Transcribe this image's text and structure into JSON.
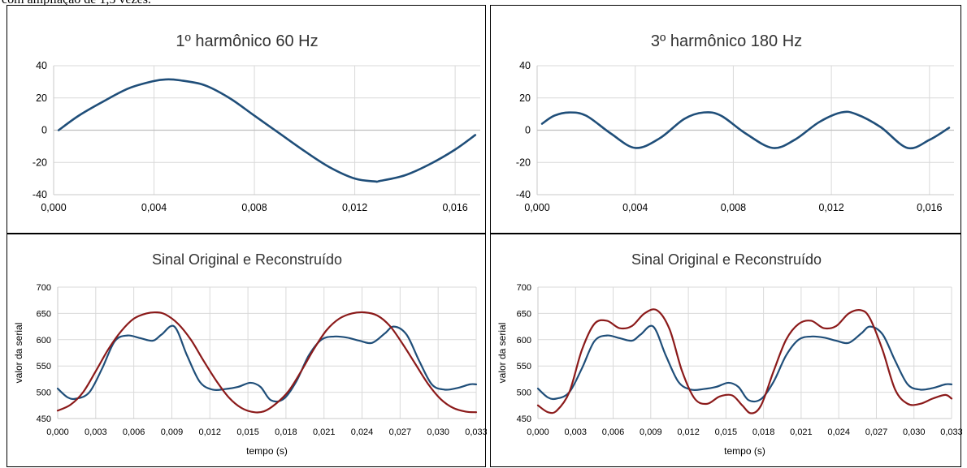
{
  "caption": "com ampliação de 1,5 vezes.",
  "colors": {
    "blue": "#1F4E79",
    "red": "#8B1A1A",
    "grid": "#d9d9d9"
  },
  "chart_data": [
    {
      "type": "line",
      "title": "1º harmônico 60 Hz",
      "xlabel": "",
      "ylabel": "",
      "xlim": [
        0,
        0.017
      ],
      "ylim": [
        -40,
        40
      ],
      "xticks": [
        "0,000",
        "0,004",
        "0,008",
        "0,012",
        "0,016"
      ],
      "yticks": [
        "-40",
        "-20",
        "0",
        "20",
        "40"
      ],
      "grid": true,
      "series": [
        {
          "color": "#1F4E79",
          "x": [
            0.0002,
            0.001,
            0.002,
            0.003,
            0.004,
            0.0045,
            0.005,
            0.006,
            0.007,
            0.008,
            0.009,
            0.01,
            0.011,
            0.012,
            0.0128,
            0.013,
            0.014,
            0.015,
            0.016,
            0.0168
          ],
          "y": [
            0,
            9,
            18,
            26,
            30.5,
            31.5,
            31,
            28,
            20,
            9,
            -2,
            -13,
            -23,
            -30,
            -31.8,
            -31.5,
            -28,
            -21,
            -12,
            -3
          ]
        }
      ]
    },
    {
      "type": "line",
      "title": "3º harmônico 180 Hz",
      "xlabel": "",
      "ylabel": "",
      "xlim": [
        0,
        0.017
      ],
      "ylim": [
        -40,
        40
      ],
      "xticks": [
        "0,000",
        "0,004",
        "0,008",
        "0,012",
        "0,016"
      ],
      "yticks": [
        "-40",
        "-20",
        "0",
        "20",
        "40"
      ],
      "grid": true,
      "series": [
        {
          "color": "#1F4E79",
          "x": [
            0.0002,
            0.0007,
            0.0013,
            0.002,
            0.003,
            0.004,
            0.005,
            0.006,
            0.0068,
            0.0075,
            0.0085,
            0.0096,
            0.0105,
            0.0115,
            0.0124,
            0.013,
            0.014,
            0.0151,
            0.016,
            0.0168
          ],
          "y": [
            4,
            9,
            11,
            9,
            -2,
            -11,
            -5,
            7,
            11,
            9,
            -2,
            -11,
            -6,
            5,
            11,
            10,
            2,
            -11,
            -6,
            1.5
          ]
        }
      ]
    },
    {
      "type": "line",
      "title": "Sinal Original e Reconstruído",
      "xlabel": "tempo (s)",
      "ylabel": "valor da serial",
      "xlim": [
        0,
        0.033
      ],
      "ylim": [
        450,
        700
      ],
      "xticks": [
        "0,000",
        "0,003",
        "0,006",
        "0,009",
        "0,012",
        "0,015",
        "0,018",
        "0,021",
        "0,024",
        "0,027",
        "0,030",
        "0,033"
      ],
      "yticks": [
        "450",
        "500",
        "550",
        "600",
        "650",
        "700"
      ],
      "grid": true,
      "series": [
        {
          "color": "#1F4E79",
          "x": [
            0,
            0.0008,
            0.0015,
            0.0025,
            0.0035,
            0.0045,
            0.0055,
            0.0065,
            0.0075,
            0.0082,
            0.0092,
            0.0102,
            0.0112,
            0.0122,
            0.0132,
            0.0142,
            0.0152,
            0.016,
            0.0168,
            0.0178,
            0.0188,
            0.0198,
            0.0208,
            0.0218,
            0.0228,
            0.0238,
            0.0248,
            0.0258,
            0.0265,
            0.0275,
            0.0285,
            0.0295,
            0.0305,
            0.0315,
            0.0325,
            0.033
          ],
          "y": [
            507,
            490,
            488,
            500,
            545,
            597,
            608,
            603,
            598,
            610,
            625,
            570,
            520,
            505,
            506,
            510,
            518,
            510,
            485,
            487,
            520,
            570,
            600,
            606,
            604,
            598,
            594,
            612,
            625,
            610,
            560,
            515,
            505,
            508,
            515,
            515
          ]
        },
        {
          "color": "#8B1A1A",
          "x": [
            0,
            0.001,
            0.002,
            0.003,
            0.004,
            0.005,
            0.006,
            0.007,
            0.0078,
            0.0085,
            0.0095,
            0.0105,
            0.0115,
            0.0125,
            0.0135,
            0.0145,
            0.0155,
            0.0163,
            0.0172,
            0.0182,
            0.0192,
            0.0202,
            0.0212,
            0.0222,
            0.0232,
            0.0242,
            0.0252,
            0.0262,
            0.0272,
            0.0282,
            0.0292,
            0.0302,
            0.0312,
            0.0322,
            0.033
          ],
          "y": [
            465,
            476,
            500,
            540,
            582,
            616,
            640,
            650,
            652,
            648,
            630,
            600,
            560,
            522,
            490,
            470,
            462,
            464,
            478,
            502,
            540,
            582,
            618,
            640,
            650,
            652,
            646,
            626,
            592,
            554,
            516,
            487,
            470,
            463,
            462
          ]
        }
      ]
    },
    {
      "type": "line",
      "title": "Sinal Original e Reconstruído",
      "xlabel": "tempo (s)",
      "ylabel": "valor da serial",
      "xlim": [
        0,
        0.033
      ],
      "ylim": [
        450,
        700
      ],
      "xticks": [
        "0,000",
        "0,003",
        "0,006",
        "0,009",
        "0,012",
        "0,015",
        "0,018",
        "0,021",
        "0,024",
        "0,027",
        "0,030",
        "0,033"
      ],
      "yticks": [
        "450",
        "500",
        "550",
        "600",
        "650",
        "700"
      ],
      "grid": true,
      "series": [
        {
          "color": "#1F4E79",
          "x": [
            0,
            0.0008,
            0.0015,
            0.0025,
            0.0035,
            0.0045,
            0.0055,
            0.0065,
            0.0075,
            0.0082,
            0.0092,
            0.0102,
            0.0112,
            0.0122,
            0.0132,
            0.0142,
            0.0152,
            0.016,
            0.0168,
            0.0178,
            0.0188,
            0.0198,
            0.0208,
            0.0218,
            0.0228,
            0.0238,
            0.0248,
            0.0258,
            0.0265,
            0.0275,
            0.0285,
            0.0295,
            0.0305,
            0.0315,
            0.0325,
            0.033
          ],
          "y": [
            507,
            490,
            488,
            500,
            545,
            597,
            608,
            603,
            598,
            610,
            625,
            570,
            520,
            505,
            506,
            510,
            518,
            510,
            485,
            487,
            520,
            570,
            600,
            606,
            604,
            598,
            594,
            612,
            625,
            610,
            560,
            515,
            505,
            508,
            515,
            515
          ]
        },
        {
          "color": "#8B1A1A",
          "x": [
            0,
            0.0008,
            0.0015,
            0.0025,
            0.0035,
            0.0045,
            0.0055,
            0.0065,
            0.0075,
            0.0085,
            0.0095,
            0.0105,
            0.0115,
            0.0125,
            0.0135,
            0.0145,
            0.0155,
            0.0163,
            0.017,
            0.0178,
            0.0188,
            0.0198,
            0.0208,
            0.0218,
            0.0228,
            0.0238,
            0.0248,
            0.0258,
            0.0265,
            0.0275,
            0.0285,
            0.0295,
            0.0305,
            0.0315,
            0.0325,
            0.033
          ],
          "y": [
            475,
            462,
            465,
            500,
            580,
            630,
            636,
            622,
            626,
            650,
            656,
            620,
            540,
            488,
            478,
            492,
            494,
            475,
            460,
            475,
            540,
            600,
            630,
            636,
            622,
            626,
            650,
            656,
            640,
            580,
            505,
            478,
            478,
            488,
            495,
            488
          ]
        }
      ]
    }
  ]
}
